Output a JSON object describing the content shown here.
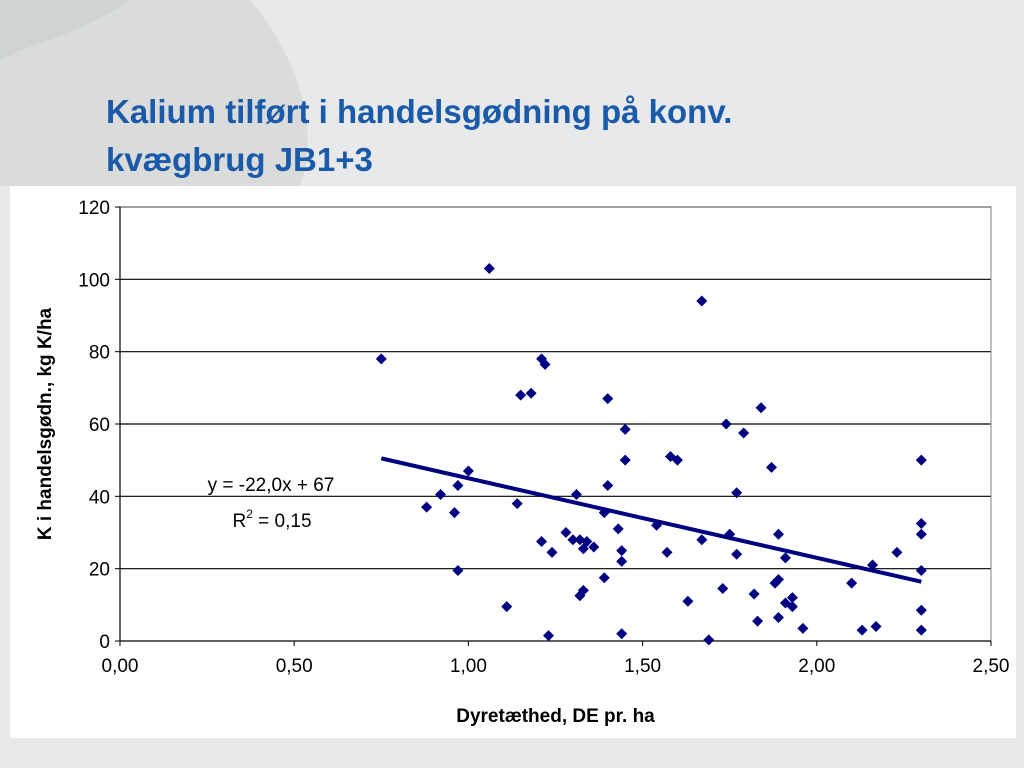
{
  "slide": {
    "title_line1": "Kalium tilført i handelsgødning på konv.",
    "title_line2": "kvægbrug JB1+3",
    "background_color": "#e7e9ea",
    "title_color": "#1b5aa8"
  },
  "chart_data": {
    "type": "scatter",
    "xlabel": "Dyretæthed, DE pr. ha",
    "ylabel": "K i handelsgødn., kg K/ha",
    "xlim": [
      0,
      2.5
    ],
    "ylim": [
      0,
      120
    ],
    "x_ticks": [
      "0,00",
      "0,50",
      "1,00",
      "1,50",
      "2,00",
      "2,50"
    ],
    "y_ticks": [
      "0",
      "20",
      "40",
      "60",
      "80",
      "100",
      "120"
    ],
    "grid": "horizontal",
    "marker": "diamond",
    "marker_color": "#000080",
    "points": [
      [
        0.75,
        78
      ],
      [
        0.88,
        37
      ],
      [
        0.92,
        40.5
      ],
      [
        0.96,
        35.5
      ],
      [
        0.97,
        43
      ],
      [
        0.97,
        19.5
      ],
      [
        1.0,
        47
      ],
      [
        1.06,
        103
      ],
      [
        1.11,
        9.5
      ],
      [
        1.14,
        38
      ],
      [
        1.15,
        68
      ],
      [
        1.18,
        68.5
      ],
      [
        1.21,
        78
      ],
      [
        1.22,
        76.5
      ],
      [
        1.21,
        27.5
      ],
      [
        1.23,
        1.5
      ],
      [
        1.24,
        24.5
      ],
      [
        1.28,
        30
      ],
      [
        1.3,
        28
      ],
      [
        1.31,
        40.5
      ],
      [
        1.32,
        28
      ],
      [
        1.32,
        12.5
      ],
      [
        1.33,
        25.5
      ],
      [
        1.33,
        14
      ],
      [
        1.34,
        27.5
      ],
      [
        1.36,
        26
      ],
      [
        1.39,
        35.5
      ],
      [
        1.39,
        17.5
      ],
      [
        1.4,
        67
      ],
      [
        1.4,
        43
      ],
      [
        1.43,
        31
      ],
      [
        1.44,
        25
      ],
      [
        1.44,
        22
      ],
      [
        1.44,
        2
      ],
      [
        1.45,
        58.5
      ],
      [
        1.45,
        50
      ],
      [
        1.54,
        32
      ],
      [
        1.57,
        24.5
      ],
      [
        1.58,
        51
      ],
      [
        1.6,
        50
      ],
      [
        1.63,
        11
      ],
      [
        1.67,
        94
      ],
      [
        1.67,
        28
      ],
      [
        1.69,
        0.3
      ],
      [
        1.73,
        14.5
      ],
      [
        1.74,
        60
      ],
      [
        1.75,
        29.5
      ],
      [
        1.77,
        41
      ],
      [
        1.77,
        24
      ],
      [
        1.79,
        57.5
      ],
      [
        1.82,
        13
      ],
      [
        1.83,
        5.5
      ],
      [
        1.84,
        64.5
      ],
      [
        1.87,
        48
      ],
      [
        1.88,
        16
      ],
      [
        1.89,
        17
      ],
      [
        1.89,
        29.5
      ],
      [
        1.89,
        6.5
      ],
      [
        1.91,
        23
      ],
      [
        1.91,
        10.5
      ],
      [
        1.93,
        12
      ],
      [
        1.93,
        9.5
      ],
      [
        1.96,
        3.5
      ],
      [
        2.1,
        16
      ],
      [
        2.13,
        3
      ],
      [
        2.16,
        21
      ],
      [
        2.17,
        4
      ],
      [
        2.23,
        24.5
      ],
      [
        2.3,
        50
      ],
      [
        2.3,
        32.5
      ],
      [
        2.3,
        29.5
      ],
      [
        2.3,
        19.5
      ],
      [
        2.3,
        8.5
      ],
      [
        2.3,
        3
      ]
    ],
    "trendline": {
      "x_range": [
        0.75,
        2.3
      ],
      "slope": -22.0,
      "intercept": 67,
      "color": "#000080",
      "equation": "y = -22,0x + 67",
      "r2_prefix": "R",
      "r2_sup": "2",
      "r2_value": " = 0,15"
    }
  }
}
